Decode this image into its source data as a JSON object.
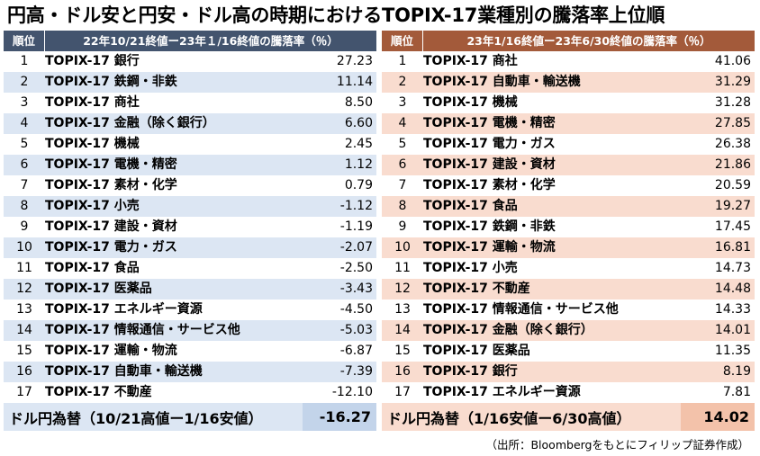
{
  "title": "円高・ドル安と円安・ドル高の時期におけるTOPIX-17業種別の騰落率上位順",
  "left": {
    "header_rank": "順位",
    "header_title": "22年10/21終値ー23年１/16終値の騰落率（％）",
    "rows": [
      {
        "rank": "1",
        "name": "TOPIX-17 銀行",
        "value": "27.23"
      },
      {
        "rank": "2",
        "name": "TOPIX-17 鉄鋼・非鉄",
        "value": "11.14"
      },
      {
        "rank": "3",
        "name": "TOPIX-17 商社",
        "value": "8.50"
      },
      {
        "rank": "4",
        "name": "TOPIX-17 金融（除く銀行）",
        "value": "6.60"
      },
      {
        "rank": "5",
        "name": "TOPIX-17 機械",
        "value": "2.45"
      },
      {
        "rank": "6",
        "name": "TOPIX-17 電機・精密",
        "value": "1.12"
      },
      {
        "rank": "7",
        "name": "TOPIX-17 素材・化学",
        "value": "0.79"
      },
      {
        "rank": "8",
        "name": "TOPIX-17 小売",
        "value": "-1.12"
      },
      {
        "rank": "9",
        "name": "TOPIX-17 建設・資材",
        "value": "-1.19"
      },
      {
        "rank": "10",
        "name": "TOPIX-17 電力・ガス",
        "value": "-2.07"
      },
      {
        "rank": "11",
        "name": "TOPIX-17 食品",
        "value": "-2.50"
      },
      {
        "rank": "12",
        "name": "TOPIX-17 医薬品",
        "value": "-3.43"
      },
      {
        "rank": "13",
        "name": "TOPIX-17 エネルギー資源",
        "value": "-4.50"
      },
      {
        "rank": "14",
        "name": "TOPIX-17 情報通信・サービス他",
        "value": "-5.03"
      },
      {
        "rank": "15",
        "name": "TOPIX-17 運輸・物流",
        "value": "-6.87"
      },
      {
        "rank": "16",
        "name": "TOPIX-17 自動車・輸送機",
        "value": "-7.39"
      },
      {
        "rank": "17",
        "name": "TOPIX-17 不動産",
        "value": "-12.10"
      }
    ],
    "footer_label": "ドル円為替（10/21高値ー1/16安値）",
    "footer_value": "-16.27"
  },
  "right": {
    "header_rank": "順位",
    "header_title": "23年1/16終値ー23年6/30終値の騰落率（％）",
    "rows": [
      {
        "rank": "1",
        "name": "TOPIX-17 商社",
        "value": "41.06"
      },
      {
        "rank": "2",
        "name": "TOPIX-17 自動車・輸送機",
        "value": "31.29"
      },
      {
        "rank": "3",
        "name": "TOPIX-17 機械",
        "value": "31.28"
      },
      {
        "rank": "4",
        "name": "TOPIX-17 電機・精密",
        "value": "27.85"
      },
      {
        "rank": "5",
        "name": "TOPIX-17 電力・ガス",
        "value": "26.38"
      },
      {
        "rank": "6",
        "name": "TOPIX-17 建設・資材",
        "value": "21.86"
      },
      {
        "rank": "7",
        "name": "TOPIX-17 素材・化学",
        "value": "20.59"
      },
      {
        "rank": "8",
        "name": "TOPIX-17 食品",
        "value": "19.27"
      },
      {
        "rank": "9",
        "name": "TOPIX-17 鉄鋼・非鉄",
        "value": "17.45"
      },
      {
        "rank": "10",
        "name": "TOPIX-17 運輸・物流",
        "value": "16.81"
      },
      {
        "rank": "11",
        "name": "TOPIX-17 小売",
        "value": "14.73"
      },
      {
        "rank": "12",
        "name": "TOPIX-17 不動産",
        "value": "14.48"
      },
      {
        "rank": "13",
        "name": "TOPIX-17 情報通信・サービス他",
        "value": "14.33"
      },
      {
        "rank": "14",
        "name": "TOPIX-17 金融（除く銀行）",
        "value": "14.01"
      },
      {
        "rank": "15",
        "name": "TOPIX-17 医薬品",
        "value": "11.35"
      },
      {
        "rank": "16",
        "name": "TOPIX-17 銀行",
        "value": "8.19"
      },
      {
        "rank": "17",
        "name": "TOPIX-17 エネルギー資源",
        "value": "7.81"
      }
    ],
    "footer_label": "ドル円為替（1/16安値ー6/30高値）",
    "footer_value": "14.02"
  },
  "source": "（出所：Bloombergをもとにフィリップ証券作成）",
  "colors": {
    "left_header": "#43546e",
    "left_alt_row": "#dce6f3",
    "right_header": "#a35a3a",
    "right_alt_row": "#f9dccf"
  }
}
